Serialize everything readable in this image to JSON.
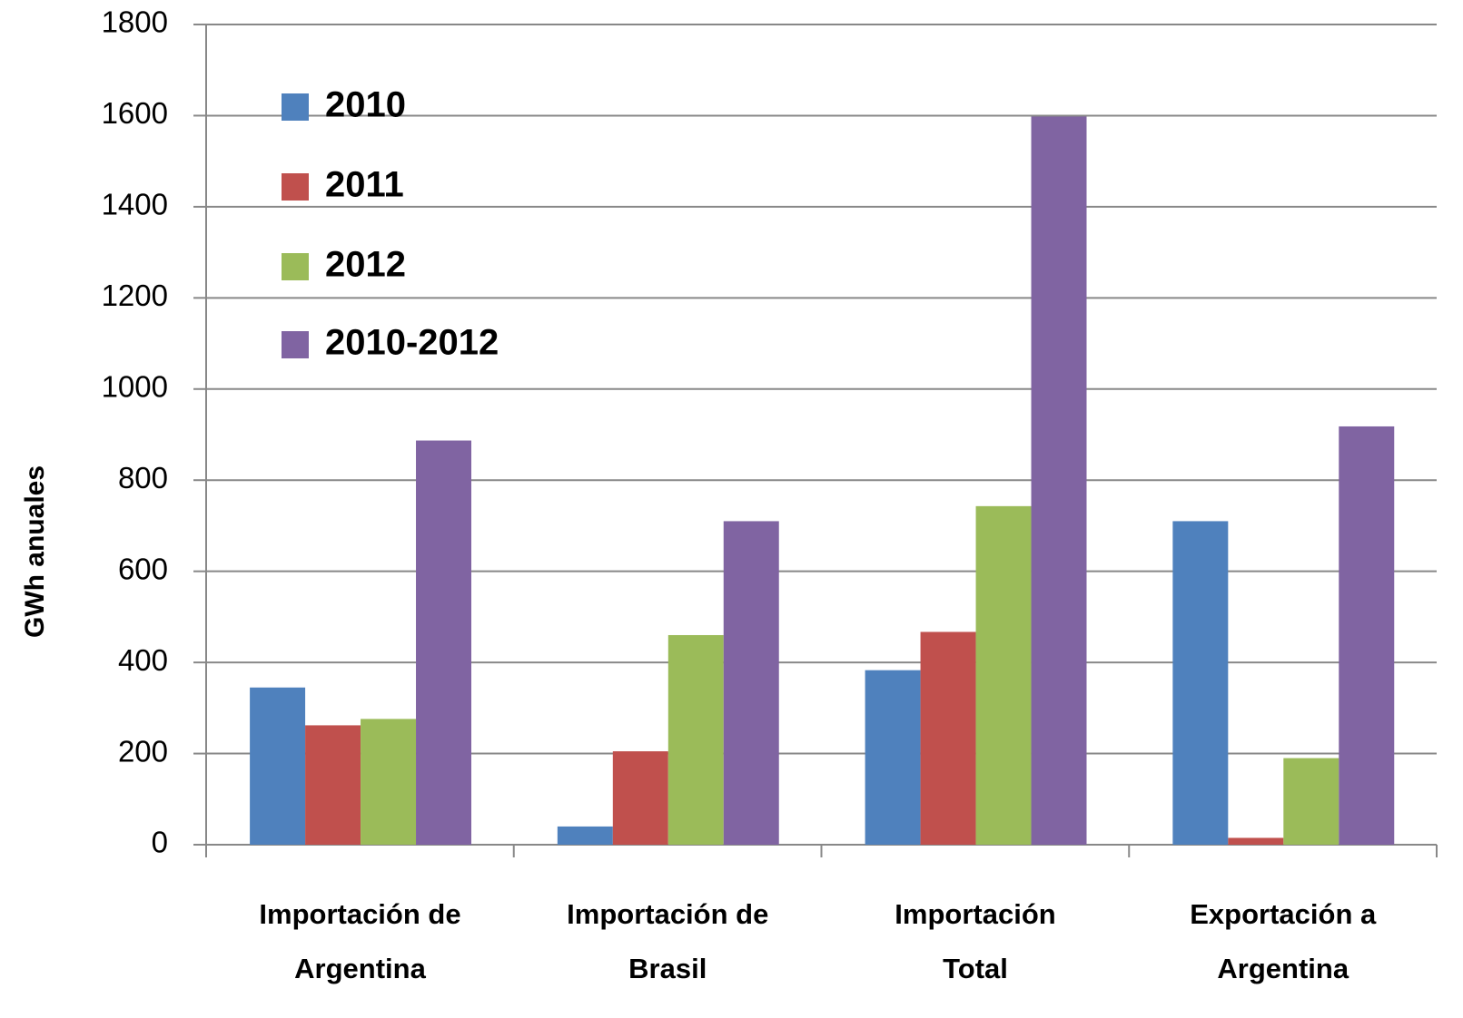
{
  "chart_data": {
    "type": "bar",
    "y_label": "GWh anuales",
    "categories": [
      "Importación de\nArgentina",
      "Importación de\nBrasil",
      "Importación\nTotal",
      "Exportación a\nArgentina"
    ],
    "series": [
      {
        "name": "2010",
        "color": "#4f81bd",
        "values": [
          345,
          40,
          383,
          710
        ]
      },
      {
        "name": "2011",
        "color": "#c0504d",
        "values": [
          262,
          205,
          467,
          15
        ]
      },
      {
        "name": "2012",
        "color": "#9bbb59",
        "values": [
          276,
          460,
          743,
          190
        ]
      },
      {
        "name": "2010-2012",
        "color": "#8064a2",
        "values": [
          887,
          710,
          1598,
          918
        ]
      }
    ],
    "ylim": [
      0,
      1800
    ],
    "yticks": [
      0,
      200,
      400,
      600,
      800,
      1000,
      1200,
      1400,
      1600,
      1800
    ],
    "grid": true,
    "legend": "upper left"
  }
}
